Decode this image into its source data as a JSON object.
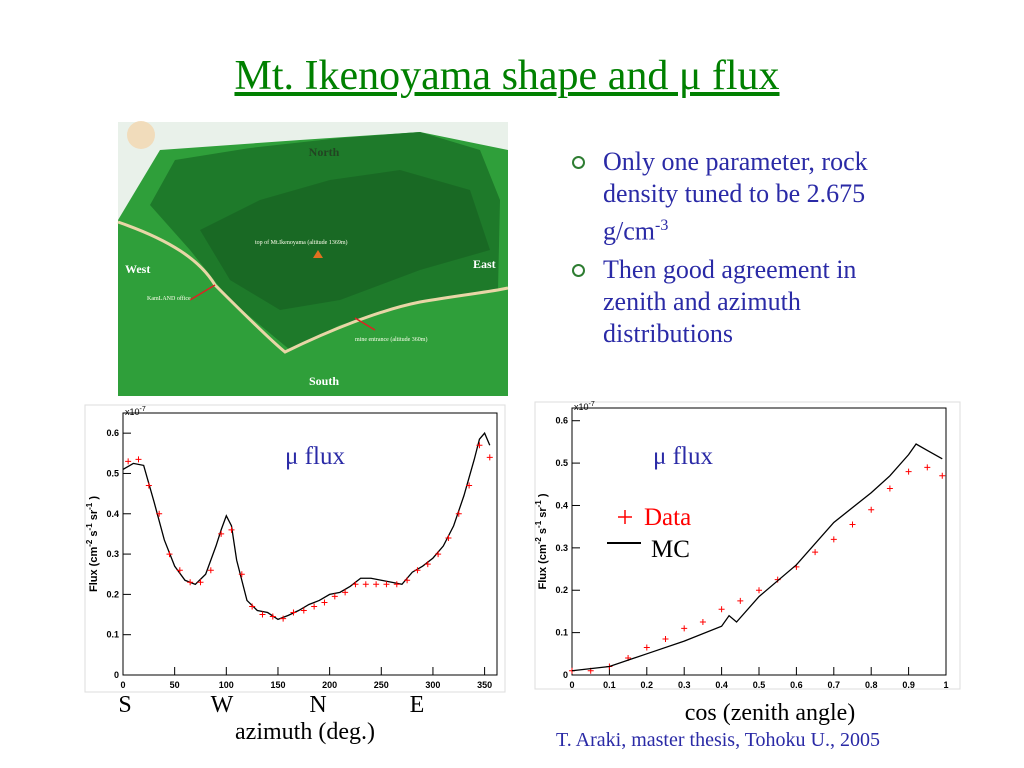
{
  "title": "Mt. Ikenoyama shape and μ flux",
  "bullets": [
    [
      "Only one parameter, rock density tuned to be 2.675 g/cm",
      "-3"
    ],
    [
      "Then good agreement in zenith and azimuth distributions"
    ]
  ],
  "map_labels": {
    "north": "North",
    "south": "South",
    "west": "West",
    "east": "East",
    "top": "top of Mt.Ikenoyama (altitude 1369m)",
    "office": "KamLAND office",
    "mine": "mine entrance (altitude 360m)"
  },
  "directions": {
    "s": "S",
    "w": "W",
    "n": "N",
    "e": "E"
  },
  "xcaption_left": "azimuth (deg.)",
  "xcaption_right": "cos (zenith angle)",
  "citation": "T. Araki, master thesis, Tohoku U., 2005",
  "chart_data": [
    {
      "type": "line",
      "annotation": "μ flux",
      "multiplier": [
        "x10",
        "-7"
      ],
      "ylabel": [
        "Flux (cm",
        "-2",
        " s",
        "-1",
        " sr",
        "-1",
        " )"
      ],
      "xlim": [
        0,
        362
      ],
      "ylim": [
        0,
        0.65
      ],
      "xticks": [
        0,
        50,
        100,
        150,
        200,
        250,
        300,
        350
      ],
      "yticks": [
        0,
        0.1,
        0.2,
        0.3,
        0.4,
        0.5,
        0.6
      ],
      "legend": false,
      "series": [
        {
          "name": "MC",
          "color": "#000000",
          "style": "line",
          "x": [
            0,
            10,
            20,
            30,
            40,
            50,
            60,
            70,
            80,
            90,
            95,
            100,
            105,
            110,
            120,
            130,
            140,
            150,
            160,
            170,
            180,
            190,
            200,
            210,
            220,
            230,
            240,
            250,
            260,
            270,
            280,
            290,
            300,
            310,
            320,
            330,
            340,
            345,
            350,
            355
          ],
          "values": [
            0.51,
            0.525,
            0.52,
            0.43,
            0.335,
            0.27,
            0.235,
            0.225,
            0.25,
            0.32,
            0.36,
            0.395,
            0.37,
            0.285,
            0.185,
            0.16,
            0.155,
            0.138,
            0.148,
            0.16,
            0.175,
            0.185,
            0.2,
            0.205,
            0.22,
            0.24,
            0.24,
            0.235,
            0.23,
            0.225,
            0.255,
            0.27,
            0.29,
            0.32,
            0.37,
            0.445,
            0.535,
            0.585,
            0.6,
            0.57
          ]
        },
        {
          "name": "Data",
          "color": "#ff0000",
          "style": "cross",
          "x": [
            5,
            15,
            25,
            35,
            45,
            55,
            65,
            75,
            85,
            95,
            105,
            115,
            125,
            135,
            145,
            155,
            165,
            175,
            185,
            195,
            205,
            215,
            225,
            235,
            245,
            255,
            265,
            275,
            285,
            295,
            305,
            315,
            325,
            335,
            345,
            355
          ],
          "values": [
            0.53,
            0.535,
            0.47,
            0.4,
            0.3,
            0.26,
            0.23,
            0.23,
            0.26,
            0.35,
            0.36,
            0.25,
            0.17,
            0.15,
            0.145,
            0.14,
            0.155,
            0.16,
            0.17,
            0.18,
            0.195,
            0.205,
            0.225,
            0.225,
            0.225,
            0.225,
            0.225,
            0.235,
            0.26,
            0.275,
            0.3,
            0.34,
            0.4,
            0.47,
            0.57,
            0.54
          ]
        }
      ]
    },
    {
      "type": "line",
      "annotation": "μ flux",
      "multiplier": [
        "x10",
        "-7"
      ],
      "ylabel": [
        "Flux (cm",
        "-2",
        " s",
        "-1",
        " sr",
        "-1",
        " )"
      ],
      "xlim": [
        0,
        1
      ],
      "ylim": [
        0,
        0.63
      ],
      "xticks": [
        0,
        0.1,
        0.2,
        0.3,
        0.4,
        0.5,
        0.6,
        0.7,
        0.8,
        0.9,
        1
      ],
      "yticks": [
        0,
        0.1,
        0.2,
        0.3,
        0.4,
        0.5,
        0.6
      ],
      "legend": true,
      "series": [
        {
          "name": "Data",
          "color": "#ff0000",
          "style": "cross",
          "x": [
            0,
            0.05,
            0.1,
            0.15,
            0.2,
            0.25,
            0.3,
            0.35,
            0.4,
            0.45,
            0.5,
            0.55,
            0.6,
            0.65,
            0.7,
            0.75,
            0.8,
            0.85,
            0.9,
            0.95,
            0.99
          ],
          "values": [
            0.01,
            0.01,
            0.02,
            0.04,
            0.065,
            0.085,
            0.11,
            0.125,
            0.155,
            0.175,
            0.2,
            0.225,
            0.255,
            0.29,
            0.32,
            0.355,
            0.39,
            0.44,
            0.48,
            0.49,
            0.47
          ]
        },
        {
          "name": "MC",
          "color": "#000000",
          "style": "line",
          "x": [
            0,
            0.1,
            0.2,
            0.3,
            0.4,
            0.42,
            0.44,
            0.5,
            0.6,
            0.7,
            0.8,
            0.85,
            0.9,
            0.92,
            0.95,
            0.99
          ],
          "values": [
            0.01,
            0.02,
            0.05,
            0.08,
            0.115,
            0.14,
            0.125,
            0.185,
            0.26,
            0.36,
            0.43,
            0.47,
            0.52,
            0.545,
            0.53,
            0.51
          ]
        }
      ]
    }
  ]
}
